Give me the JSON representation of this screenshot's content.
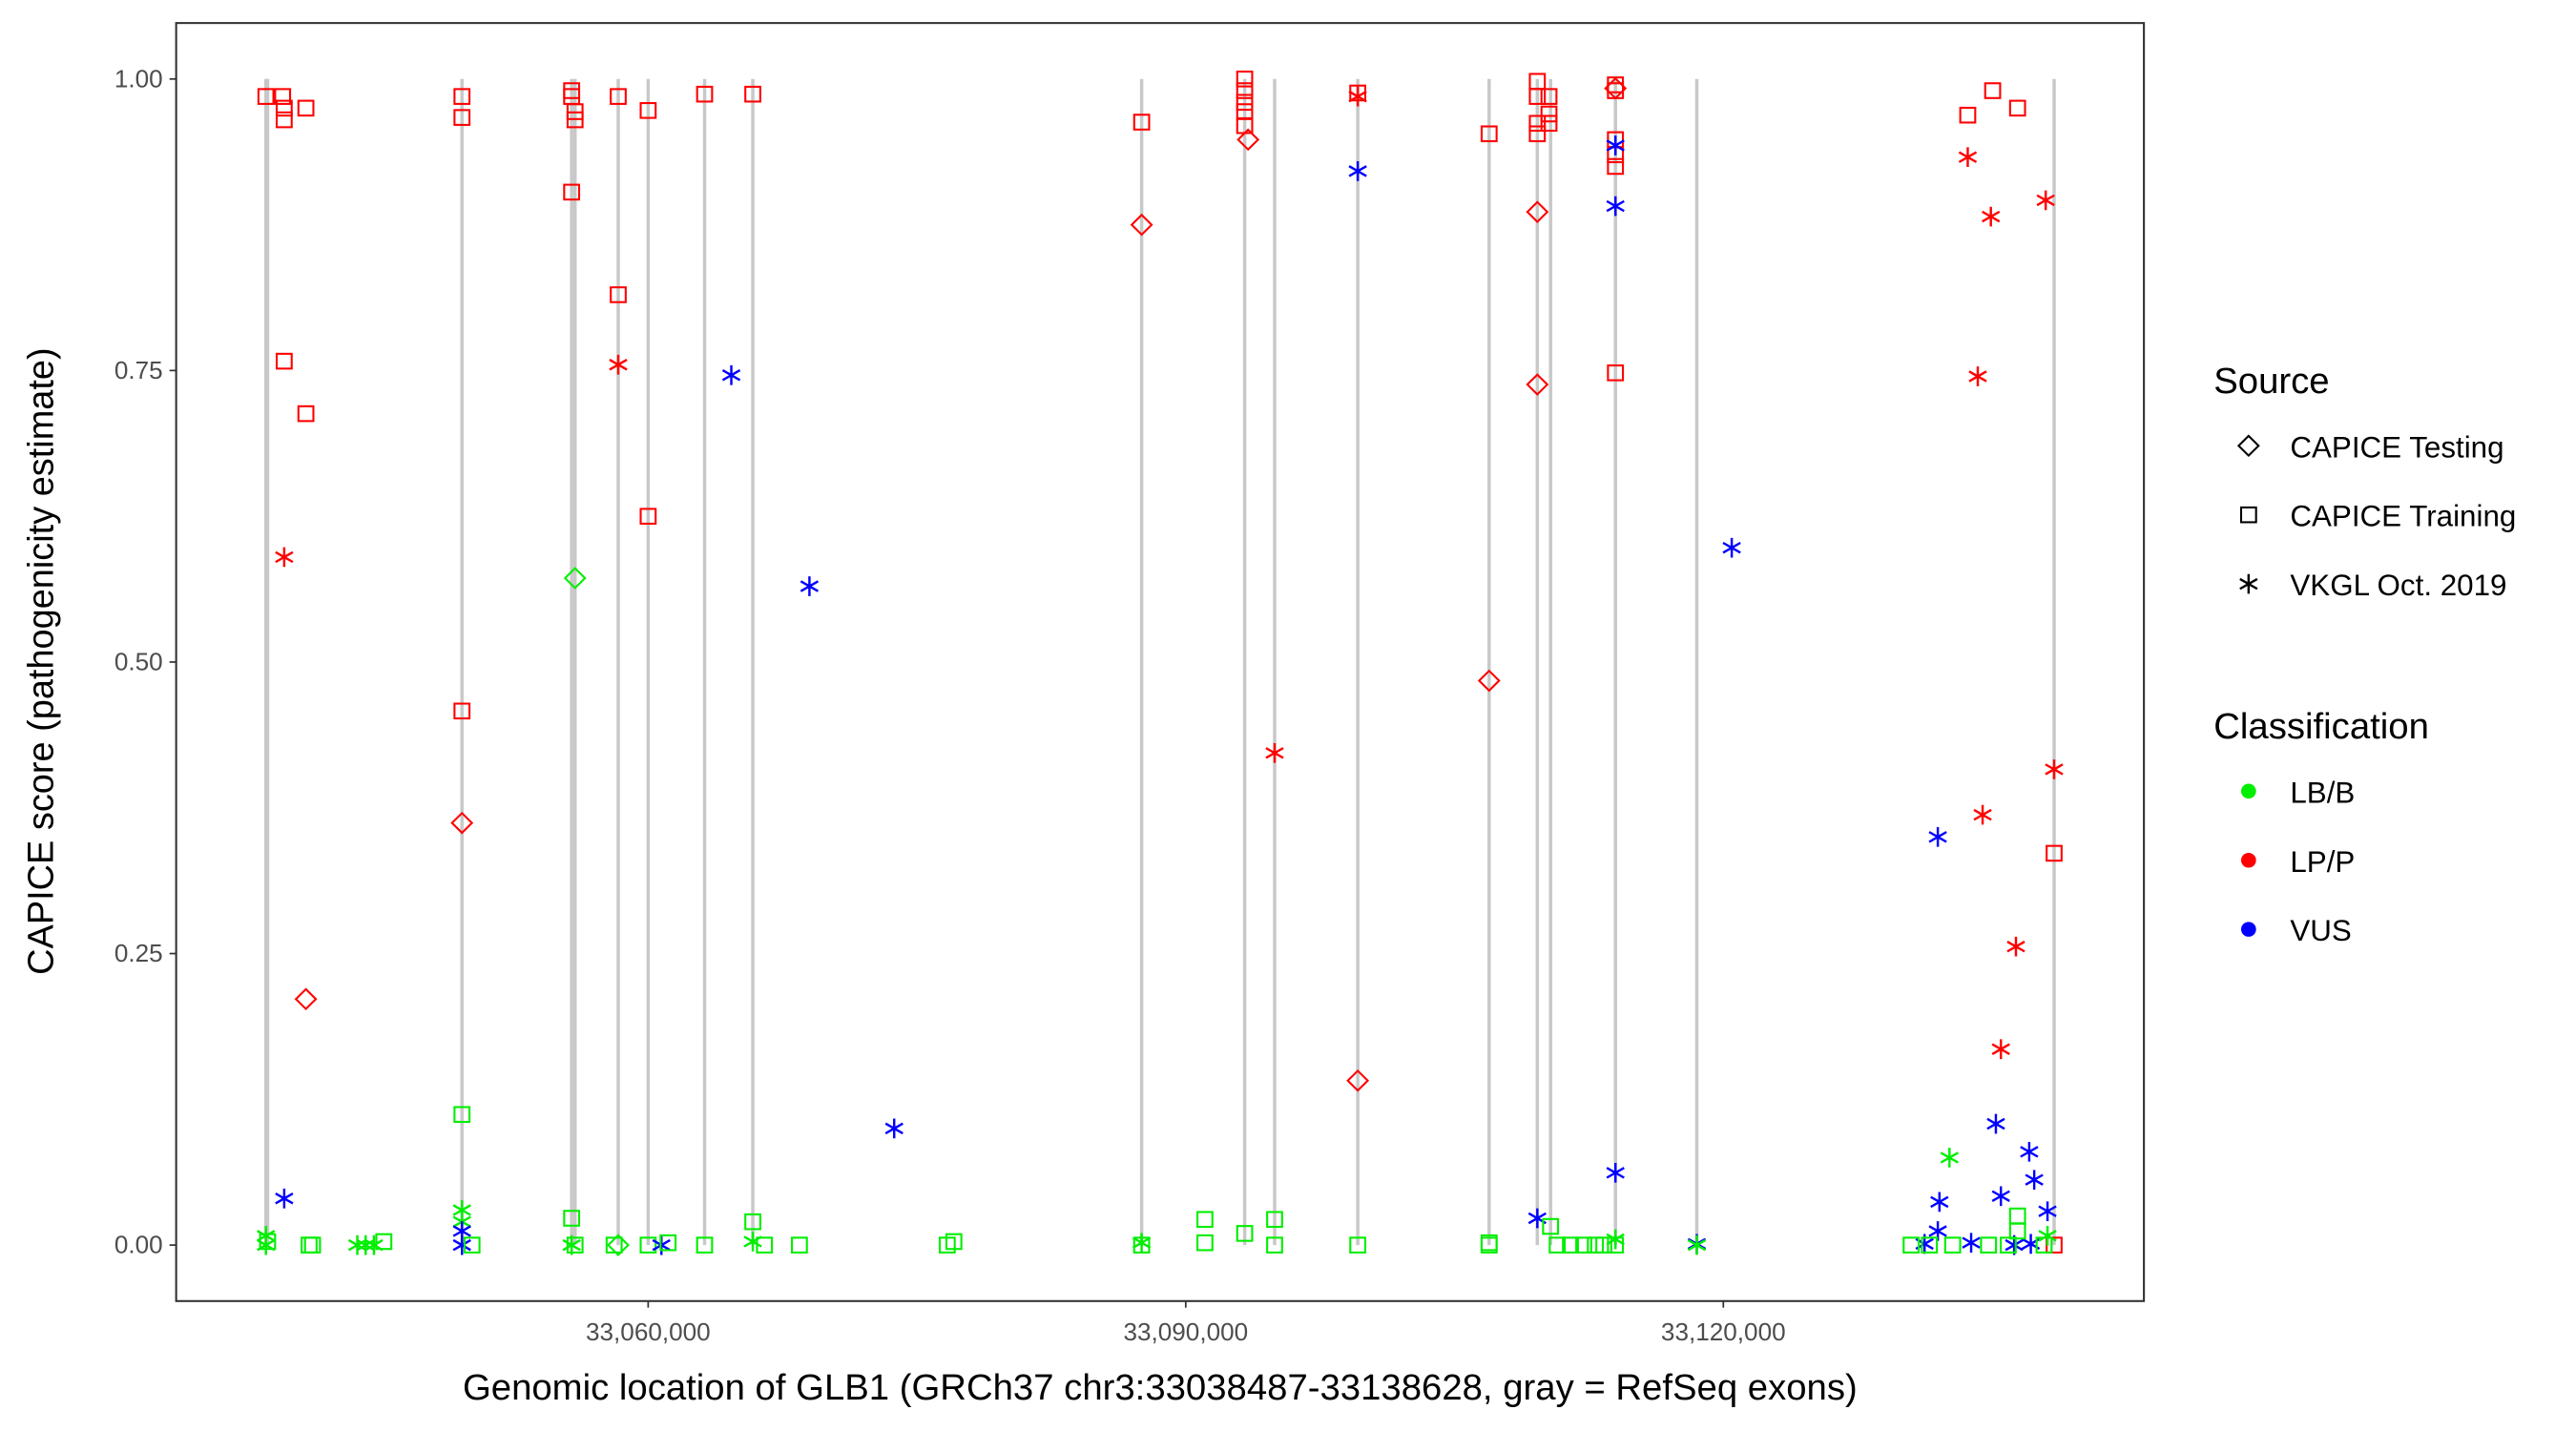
{
  "chart_data": {
    "type": "scatter",
    "title": "",
    "xlabel": "Genomic location of GLB1 (GRCh37 chr3:33038487-33138628, gray = RefSeq exons)",
    "ylabel": "CAPICE score (pathogenicity estimate)",
    "xlim": [
      33033660,
      33143470
    ],
    "ylim": [
      -0.048,
      1.048
    ],
    "x_ticks": [
      33060000,
      33090000,
      33120000
    ],
    "x_tick_labels": [
      "33,060,000",
      "33,090,000",
      "33,120,000"
    ],
    "y_ticks": [
      0,
      0.25,
      0.5,
      0.75,
      1.0
    ],
    "y_tick_labels": [
      "0.00",
      "0.25",
      "0.50",
      "0.75",
      "1.00"
    ],
    "grid": false,
    "exons": [
      33038670,
      33038763,
      33049610,
      33055730,
      33055920,
      33058330,
      33060000,
      33063150,
      33065840,
      33087540,
      33093290,
      33094960,
      33099600,
      33106930,
      33109620,
      33110360,
      33113980,
      33118520,
      33138460
    ],
    "legend_placement": "right",
    "legend": {
      "source_title": "Source",
      "sources": [
        {
          "label": "CAPICE Testing",
          "shape": "diamond"
        },
        {
          "label": "CAPICE Training",
          "shape": "square"
        },
        {
          "label": "VKGL Oct. 2019",
          "shape": "asterisk"
        }
      ],
      "class_title": "Classification",
      "classes": [
        {
          "label": "LB/B",
          "color": "#00ee00"
        },
        {
          "label": "LP/P",
          "color": "#ff0000"
        },
        {
          "label": "VUS",
          "color": "#0000ff"
        }
      ]
    },
    "point_fields": [
      "position",
      "score",
      "source_index",
      "class_index"
    ],
    "points": [
      [
        33038670,
        0.985,
        1,
        1
      ],
      [
        33039600,
        0.985,
        1,
        1
      ],
      [
        33039690,
        0.975,
        1,
        1
      ],
      [
        33039690,
        0.965,
        1,
        1
      ],
      [
        33040900,
        0.975,
        1,
        1
      ],
      [
        33039690,
        0.758,
        1,
        1
      ],
      [
        33040900,
        0.713,
        1,
        1
      ],
      [
        33040900,
        0.211,
        0,
        1
      ],
      [
        33039690,
        0.59,
        2,
        1
      ],
      [
        33039690,
        0.04,
        2,
        2
      ],
      [
        33038670,
        0.0,
        2,
        0
      ],
      [
        33038670,
        0.008,
        2,
        0
      ],
      [
        33038763,
        0.003,
        1,
        0
      ],
      [
        33041080,
        0.0,
        1,
        0
      ],
      [
        33041270,
        0.0,
        1,
        0
      ],
      [
        33043770,
        0.0,
        2,
        0
      ],
      [
        33044234,
        0.0,
        2,
        0
      ],
      [
        33044700,
        0.0,
        2,
        0
      ],
      [
        33045250,
        0.003,
        1,
        0
      ],
      [
        33049610,
        0.985,
        1,
        1
      ],
      [
        33049610,
        0.967,
        1,
        1
      ],
      [
        33049610,
        0.458,
        1,
        1
      ],
      [
        33049610,
        0.362,
        0,
        1
      ],
      [
        33049610,
        0.112,
        1,
        0
      ],
      [
        33049610,
        0.03,
        2,
        0
      ],
      [
        33049610,
        0.02,
        2,
        0
      ],
      [
        33049610,
        0.012,
        2,
        2
      ],
      [
        33049610,
        0.0,
        2,
        2
      ],
      [
        33050170,
        0.0,
        1,
        0
      ],
      [
        33055730,
        0.99,
        1,
        1
      ],
      [
        33055730,
        0.985,
        1,
        1
      ],
      [
        33055730,
        0.903,
        1,
        1
      ],
      [
        33055920,
        0.972,
        1,
        1
      ],
      [
        33055920,
        0.965,
        1,
        1
      ],
      [
        33055920,
        0.572,
        0,
        0
      ],
      [
        33055730,
        0.023,
        1,
        0
      ],
      [
        33055730,
        0.0,
        2,
        0
      ],
      [
        33055920,
        0.0,
        1,
        0
      ],
      [
        33058330,
        0.985,
        1,
        1
      ],
      [
        33058330,
        0.815,
        1,
        1
      ],
      [
        33058330,
        0.755,
        2,
        1
      ],
      [
        33058330,
        0.0,
        0,
        0
      ],
      [
        33058100,
        0.0,
        1,
        0
      ],
      [
        33060000,
        0.973,
        1,
        1
      ],
      [
        33060000,
        0.625,
        1,
        1
      ],
      [
        33060000,
        0.0,
        1,
        0
      ],
      [
        33060740,
        0.0,
        2,
        2
      ],
      [
        33061110,
        0.002,
        1,
        0
      ],
      [
        33063150,
        0.987,
        1,
        1
      ],
      [
        33063150,
        0.0,
        1,
        0
      ],
      [
        33064640,
        0.746,
        2,
        2
      ],
      [
        33065840,
        0.987,
        1,
        1
      ],
      [
        33065840,
        0.02,
        1,
        0
      ],
      [
        33065840,
        0.003,
        2,
        0
      ],
      [
        33066490,
        0.0,
        1,
        0
      ],
      [
        33068440,
        0.0,
        1,
        0
      ],
      [
        33069000,
        0.565,
        2,
        2
      ],
      [
        33073730,
        0.1,
        2,
        2
      ],
      [
        33076690,
        0.0,
        1,
        0
      ],
      [
        33077060,
        0.003,
        1,
        0
      ],
      [
        33087540,
        0.963,
        1,
        1
      ],
      [
        33087540,
        0.875,
        0,
        1
      ],
      [
        33087540,
        0.002,
        2,
        0
      ],
      [
        33087540,
        0.0,
        1,
        0
      ],
      [
        33091070,
        0.022,
        1,
        0
      ],
      [
        33091070,
        0.002,
        1,
        0
      ],
      [
        33093290,
        1.0,
        1,
        1
      ],
      [
        33093290,
        0.99,
        1,
        1
      ],
      [
        33093290,
        0.98,
        1,
        1
      ],
      [
        33093290,
        0.972,
        1,
        1
      ],
      [
        33093290,
        0.96,
        1,
        1
      ],
      [
        33093480,
        0.948,
        0,
        1
      ],
      [
        33093290,
        0.01,
        1,
        0
      ],
      [
        33094960,
        0.422,
        2,
        1
      ],
      [
        33094960,
        0.022,
        1,
        0
      ],
      [
        33094960,
        0.0,
        1,
        0
      ],
      [
        33099600,
        0.988,
        1,
        1
      ],
      [
        33099600,
        0.985,
        2,
        1
      ],
      [
        33099600,
        0.921,
        2,
        2
      ],
      [
        33099600,
        0.141,
        0,
        1
      ],
      [
        33099600,
        0.0,
        1,
        0
      ],
      [
        33106930,
        0.953,
        1,
        1
      ],
      [
        33106930,
        0.484,
        0,
        1
      ],
      [
        33106930,
        0.0,
        1,
        0
      ],
      [
        33106930,
        0.002,
        1,
        0
      ],
      [
        33109620,
        0.998,
        1,
        1
      ],
      [
        33109620,
        0.985,
        1,
        1
      ],
      [
        33109620,
        0.962,
        1,
        1
      ],
      [
        33109620,
        0.953,
        1,
        1
      ],
      [
        33109620,
        0.886,
        0,
        1
      ],
      [
        33109620,
        0.738,
        0,
        1
      ],
      [
        33109620,
        0.023,
        2,
        2
      ],
      [
        33110270,
        0.985,
        1,
        1
      ],
      [
        33110270,
        0.97,
        1,
        1
      ],
      [
        33110270,
        0.962,
        1,
        1
      ],
      [
        33110360,
        0.016,
        1,
        0
      ],
      [
        33110730,
        0.0,
        1,
        0
      ],
      [
        33111470,
        0.0,
        1,
        0
      ],
      [
        33112210,
        0.0,
        1,
        0
      ],
      [
        33112860,
        0.0,
        1,
        0
      ],
      [
        33113330,
        0.0,
        1,
        0
      ],
      [
        33113980,
        0.995,
        1,
        1
      ],
      [
        33113980,
        0.99,
        1,
        1
      ],
      [
        33113980,
        0.948,
        1,
        1
      ],
      [
        33113980,
        0.935,
        1,
        1
      ],
      [
        33113980,
        0.925,
        1,
        1
      ],
      [
        33113980,
        0.748,
        1,
        1
      ],
      [
        33113980,
        0.992,
        0,
        1
      ],
      [
        33113980,
        0.943,
        2,
        2
      ],
      [
        33113980,
        0.891,
        2,
        2
      ],
      [
        33113980,
        0.062,
        2,
        2
      ],
      [
        33113980,
        0.005,
        2,
        0
      ],
      [
        33113980,
        0.0,
        1,
        0
      ],
      [
        33118520,
        0.001,
        2,
        2
      ],
      [
        33118520,
        0.0,
        2,
        0
      ],
      [
        33120470,
        0.598,
        2,
        2
      ],
      [
        33133640,
        0.969,
        1,
        1
      ],
      [
        33135030,
        0.99,
        1,
        1
      ],
      [
        33136420,
        0.975,
        1,
        1
      ],
      [
        33138460,
        0.336,
        1,
        1
      ],
      [
        33138460,
        0.0,
        1,
        1
      ],
      [
        33133640,
        0.933,
        2,
        1
      ],
      [
        33134200,
        0.745,
        2,
        1
      ],
      [
        33134930,
        0.882,
        2,
        1
      ],
      [
        33137990,
        0.896,
        2,
        1
      ],
      [
        33134470,
        0.369,
        2,
        1
      ],
      [
        33136330,
        0.256,
        2,
        1
      ],
      [
        33135490,
        0.168,
        2,
        1
      ],
      [
        33138460,
        0.408,
        2,
        1
      ],
      [
        33131970,
        0.35,
        2,
        2
      ],
      [
        33132060,
        0.037,
        2,
        2
      ],
      [
        33131970,
        0.012,
        2,
        2
      ],
      [
        33131230,
        0.001,
        2,
        2
      ],
      [
        33133830,
        0.002,
        2,
        2
      ],
      [
        33135210,
        0.104,
        2,
        2
      ],
      [
        33135490,
        0.042,
        2,
        2
      ],
      [
        33137070,
        0.08,
        2,
        2
      ],
      [
        33137350,
        0.056,
        2,
        2
      ],
      [
        33138090,
        0.029,
        2,
        2
      ],
      [
        33136230,
        0.0,
        2,
        2
      ],
      [
        33137160,
        0.001,
        2,
        2
      ],
      [
        33132620,
        0.075,
        2,
        0
      ],
      [
        33130480,
        0.0,
        1,
        0
      ],
      [
        33131500,
        0.0,
        1,
        0
      ],
      [
        33132800,
        0.0,
        1,
        0
      ],
      [
        33134800,
        0.0,
        1,
        0
      ],
      [
        33135900,
        0.0,
        1,
        0
      ],
      [
        33136420,
        0.025,
        1,
        0
      ],
      [
        33136420,
        0.012,
        1,
        0
      ],
      [
        33137900,
        0.0,
        1,
        0
      ],
      [
        33138090,
        0.008,
        2,
        0
      ]
    ]
  }
}
